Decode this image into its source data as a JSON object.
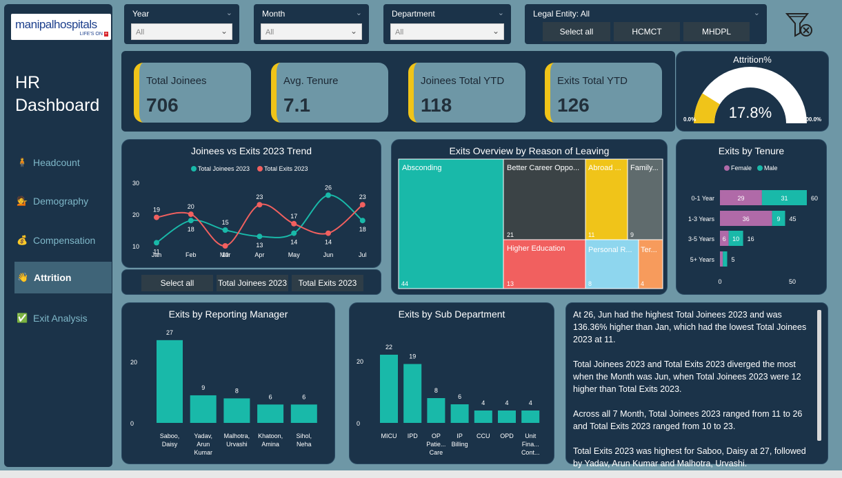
{
  "sidebar": {
    "logo_main": "manipal",
    "logo_bold": "hospitals",
    "logo_tag": "LIFE'S ON",
    "title_line1": "HR",
    "title_line2": "Dashboard",
    "nav": [
      {
        "label": "Headcount",
        "icon": "🧍"
      },
      {
        "label": "Demography",
        "icon": "💁"
      },
      {
        "label": "Compensation",
        "icon": "💰"
      },
      {
        "label": "Attrition",
        "icon": "👋"
      },
      {
        "label": "Exit Analysis",
        "icon": "✅"
      }
    ]
  },
  "filters": {
    "year": {
      "label": "Year",
      "value": "All"
    },
    "month": {
      "label": "Month",
      "value": "All"
    },
    "department": {
      "label": "Department",
      "value": "All"
    },
    "legal_entity": {
      "label": "Legal Entity: All",
      "buttons": [
        "Select all",
        "HCMCT",
        "MHDPL"
      ]
    }
  },
  "kpis": [
    {
      "label": "Total Joinees",
      "value": "706"
    },
    {
      "label": "Avg. Tenure",
      "value": "7.1"
    },
    {
      "label": "Joinees Total YTD",
      "value": "118"
    },
    {
      "label": "Exits Total YTD",
      "value": "126"
    }
  ],
  "attrition": {
    "title": "Attrition%",
    "value": "17.8%",
    "min": "0.0%",
    "max": "100.0%",
    "fraction": 0.178
  },
  "trend": {
    "title": "Joinees vs Exits 2023 Trend",
    "legend": [
      "Total Joinees 2023",
      "Total Exits 2023"
    ],
    "buttons": [
      "Select all",
      "Total Joinees 2023",
      "Total Exits 2023"
    ]
  },
  "treemap": {
    "title": "Exits Overview by Reason of Leaving",
    "items": [
      {
        "label": "Absconding",
        "value": "44"
      },
      {
        "label": "Better Career Oppo...",
        "value": "21"
      },
      {
        "label": "Abroad ...",
        "value": "11"
      },
      {
        "label": "Family...",
        "value": "9"
      },
      {
        "label": "Higher Education",
        "value": "13"
      },
      {
        "label": "Personal R...",
        "value": "8"
      },
      {
        "label": "Ter...",
        "value": "4"
      }
    ]
  },
  "tenure": {
    "title": "Exits by Tenure",
    "legend": [
      "Female",
      "Male"
    ],
    "axis": [
      "0",
      "50"
    ]
  },
  "manager": {
    "title": "Exits by Reporting Manager"
  },
  "subdept": {
    "title": "Exits by Sub Department"
  },
  "chart_data": [
    {
      "type": "line",
      "title": "Joinees vs Exits 2023 Trend",
      "categories": [
        "Jan",
        "Feb",
        "Mar",
        "Apr",
        "May",
        "Jun",
        "Jul"
      ],
      "series": [
        {
          "name": "Total Joinees 2023",
          "values": [
            11,
            18,
            15,
            13,
            14,
            26,
            18
          ],
          "color": "#19b9a9"
        },
        {
          "name": "Total Exits 2023",
          "values": [
            19,
            20,
            10,
            23,
            17,
            14,
            23
          ],
          "color": "#f1605f"
        }
      ],
      "ylim": [
        5,
        30
      ],
      "yticks": [
        10,
        20,
        30
      ]
    },
    {
      "type": "bar",
      "orientation": "horizontal",
      "stacked": true,
      "title": "Exits by Tenure",
      "categories": [
        "0-1 Year",
        "1-3 Years",
        "3-5 Years",
        "5+ Years"
      ],
      "series": [
        {
          "name": "Female",
          "values": [
            29,
            36,
            6,
            2
          ],
          "color": "#b06aa8"
        },
        {
          "name": "Male",
          "values": [
            31,
            9,
            10,
            3
          ],
          "color": "#19b9a9"
        }
      ],
      "totals": [
        60,
        45,
        16,
        5
      ],
      "xlim": [
        0,
        60
      ]
    },
    {
      "type": "bar",
      "title": "Exits by Reporting Manager",
      "categories": [
        "Saboo, Daisy",
        "Yadav, Arun Kumar",
        "Malhotra, Urvashi",
        "Khatoon, Amina",
        "Sihol, Neha"
      ],
      "category_lines": [
        [
          "Saboo,",
          "Daisy"
        ],
        [
          "Yadav,",
          "Arun",
          "Kumar"
        ],
        [
          "Malhotra,",
          "Urvashi"
        ],
        [
          "Khatoon,",
          "Amina"
        ],
        [
          "Sihol,",
          "Neha"
        ]
      ],
      "values": [
        27,
        9,
        8,
        6,
        6
      ],
      "yticks": [
        0,
        20
      ],
      "ylim": [
        0,
        30
      ]
    },
    {
      "type": "bar",
      "title": "Exits by Sub Department",
      "categories": [
        "MICU",
        "IPD",
        "OP Patient Care",
        "IP Billing",
        "CCU",
        "OPD",
        "Unit Finance Controller"
      ],
      "category_lines": [
        [
          "MICU"
        ],
        [
          "IPD"
        ],
        [
          "OP",
          "Patie...",
          "Care"
        ],
        [
          "IP",
          "Billing"
        ],
        [
          "CCU"
        ],
        [
          "OPD"
        ],
        [
          "Unit",
          "Fina...",
          "Cont..."
        ]
      ],
      "values": [
        22,
        19,
        8,
        6,
        4,
        4,
        4
      ],
      "yticks": [
        0,
        20
      ],
      "ylim": [
        0,
        25
      ]
    }
  ],
  "insights": [
    "At 26, Jun had the highest Total Joinees 2023 and was 136.36% higher than Jan, which had the lowest Total Joinees 2023 at 11.",
    "Total Joinees 2023 and Total Exits 2023 diverged the most when the Month was Jun, when Total Joinees 2023 were 12 higher than Total Exits 2023.",
    "Across all 7 Month, Total Joinees 2023 ranged from 11 to 26 and Total Exits 2023 ranged from 10 to 23.",
    "Total Exits 2023 was highest for Saboo, Daisy at 27, followed by Yadav, Arun Kumar and Malhotra, Urvashi."
  ]
}
